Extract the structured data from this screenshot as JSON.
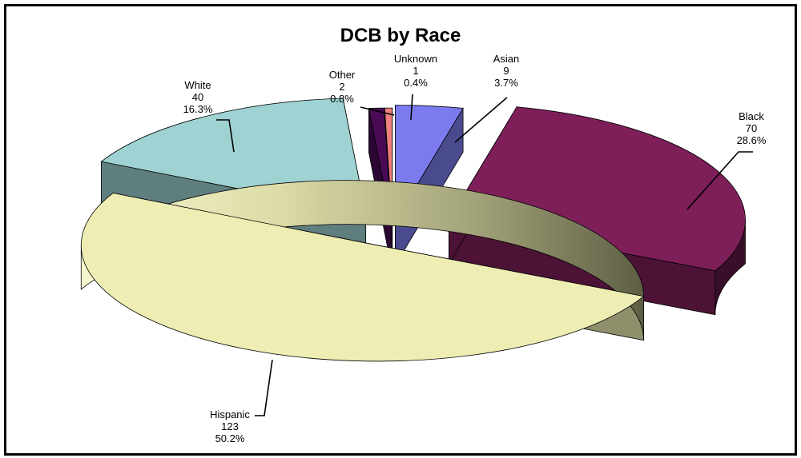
{
  "chart_data": {
    "type": "pie",
    "title": "DCB by Race",
    "exploded": true,
    "three_d": true,
    "slices": [
      {
        "name": "Asian",
        "value": 9,
        "percent": "3.7%",
        "color": "#7b7bef"
      },
      {
        "name": "Black",
        "value": 70,
        "percent": "28.6%",
        "color": "#7e1f5a"
      },
      {
        "name": "Hispanic",
        "value": 123,
        "percent": "50.2%",
        "color": "#eeeeb4"
      },
      {
        "name": "White",
        "value": 40,
        "percent": "16.3%",
        "color": "#9fd2d2"
      },
      {
        "name": "Other",
        "value": 2,
        "percent": "0.8%",
        "color": "#4a0a55"
      },
      {
        "name": "Unknown",
        "value": 1,
        "percent": "0.4%",
        "color": "#f07f7f"
      }
    ]
  }
}
